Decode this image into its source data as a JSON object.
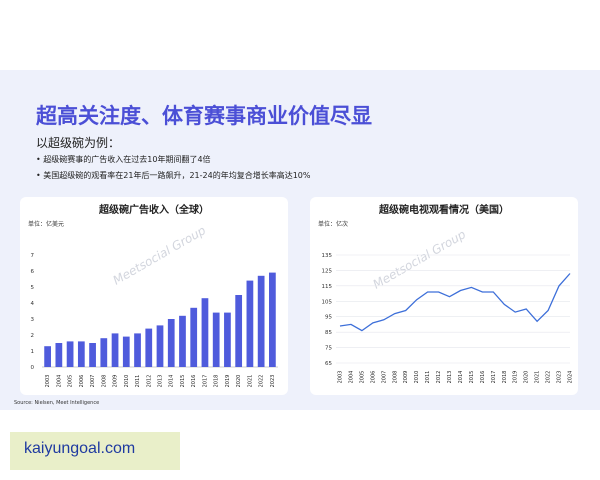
{
  "page": {
    "title": "超高关注度、体育赛事商业价值尽显",
    "subtitle": "以超级碗为例：",
    "bullets": [
      "超级碗赛事的广告收入在过去10年期间翻了4倍",
      "美国超级碗的观看率在21年后一路飙升，21-24的年均复合增长率高达10%"
    ],
    "source": "Source: Nielsen, Meet Intelligence",
    "site_watermark": "kaiyungoal.com",
    "logo_text": "Meetsocial Group",
    "colors": {
      "title": "#4b4fd6",
      "bar": "#4f5bdc",
      "line": "#3d6fd9",
      "background": "#eef1fb"
    }
  },
  "chart_data": [
    {
      "type": "bar",
      "title": "超级碗广告收入（全球）",
      "unit_label": "单位：亿美元",
      "categories": [
        "2003",
        "2004",
        "2005",
        "2006",
        "2007",
        "2008",
        "2009",
        "2010",
        "2011",
        "2012",
        "2013",
        "2014",
        "2015",
        "2016",
        "2017",
        "2018",
        "2019",
        "2020",
        "2021",
        "2022",
        "2023"
      ],
      "values": [
        1.3,
        1.5,
        1.6,
        1.6,
        1.5,
        1.8,
        2.1,
        1.9,
        2.1,
        2.4,
        2.6,
        3.0,
        3.2,
        3.7,
        4.3,
        3.4,
        3.4,
        4.5,
        5.4,
        5.7,
        5.9
      ],
      "ylim": [
        0,
        7
      ],
      "yticks": [
        0,
        1,
        2,
        3,
        4,
        5,
        6,
        7
      ],
      "grid": false
    },
    {
      "type": "line",
      "title": "超级碗电视观看情况（美国）",
      "unit_label": "单位：亿次",
      "categories": [
        "2003",
        "2004",
        "2005",
        "2006",
        "2007",
        "2008",
        "2009",
        "2010",
        "2011",
        "2012",
        "2013",
        "2014",
        "2015",
        "2016",
        "2017",
        "2018",
        "2019",
        "2020",
        "2021",
        "2022",
        "2023",
        "2024"
      ],
      "values": [
        89,
        90,
        86,
        91,
        93,
        97,
        99,
        106,
        111,
        111,
        108,
        112,
        114,
        111,
        111,
        103,
        98,
        100,
        92,
        99,
        115,
        123
      ],
      "ylim": [
        65,
        135
      ],
      "yticks": [
        65,
        75,
        85,
        95,
        105,
        115,
        125,
        135
      ],
      "grid": true
    }
  ]
}
